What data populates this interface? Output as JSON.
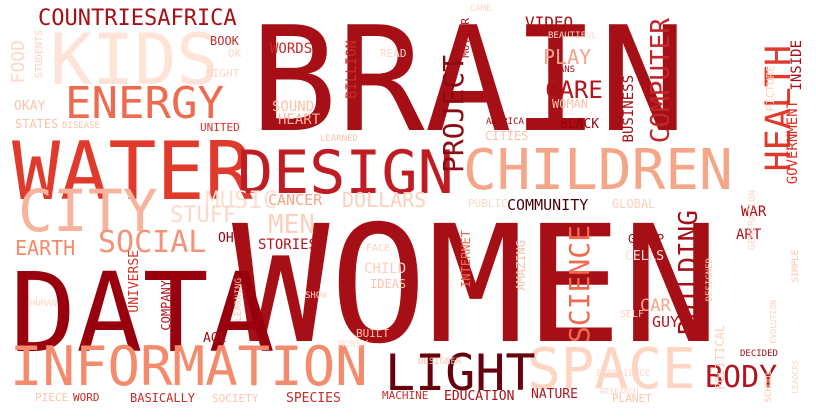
{
  "words": [
    {
      "text": "BRAIN",
      "color": "#a50f15"
    },
    {
      "text": "WOMEN",
      "color": "#a50f15"
    },
    {
      "text": "DATA",
      "color": "#99000d"
    },
    {
      "text": "WATER",
      "color": "#e03a2d"
    },
    {
      "text": "DESIGN",
      "color": "#bf1c24"
    },
    {
      "text": "CHILDREN",
      "color": "#f6a688"
    },
    {
      "text": "INFORMATION",
      "color": "#f48b6d"
    },
    {
      "text": "SPACE",
      "color": "#fdd5c2"
    },
    {
      "text": "KIDS",
      "color": "#fee3d6"
    },
    {
      "text": "CITY",
      "color": "#f7b39b"
    },
    {
      "text": "ENERGY",
      "color": "#ef6b50"
    },
    {
      "text": "LIGHT",
      "color": "#67000d"
    },
    {
      "text": "HEALTH",
      "color": "#e03a2d"
    },
    {
      "text": "COUNTRIESAFRICA",
      "color": "#a50f15"
    },
    {
      "text": "SOCIAL",
      "color": "#f3937a"
    },
    {
      "text": "BODY",
      "color": "#b2151e"
    },
    {
      "text": "PROJECT",
      "color": "#8c0a12"
    },
    {
      "text": "COMPUTER",
      "color": "#c2252a"
    },
    {
      "text": "SCIENCE",
      "color": "#f06a4f"
    },
    {
      "text": "BUILDING",
      "color": "#a50f15"
    },
    {
      "text": "CARE",
      "color": "#b2151e"
    },
    {
      "text": "PLAY",
      "color": "#f4a287"
    },
    {
      "text": "MEN",
      "color": "#fcd0bc"
    },
    {
      "text": "MUSIC",
      "color": "#fbe0d4"
    },
    {
      "text": "STUFF",
      "color": "#fbd8c9"
    },
    {
      "text": "EARTH",
      "color": "#f58a6b"
    },
    {
      "text": "CANCER",
      "color": "#f6a688"
    },
    {
      "text": "DOLLARS",
      "color": "#fcd0bc"
    },
    {
      "text": "COMMUNITY",
      "color": "#4d0009"
    },
    {
      "text": "STORIES",
      "color": "#b2151e"
    },
    {
      "text": "FOOD",
      "color": "#fbd8c9"
    },
    {
      "text": "VIDEO",
      "color": "#a50f15"
    },
    {
      "text": "WORDS",
      "color": "#c72b2a"
    },
    {
      "text": "BILLION",
      "color": "#c72b2a"
    },
    {
      "text": "SOUND",
      "color": "#fcc3ab"
    },
    {
      "text": "HEART",
      "color": "#fcb59a"
    },
    {
      "text": "BLACK",
      "color": "#99000d"
    },
    {
      "text": "WOMAN",
      "color": "#fcc3ab"
    },
    {
      "text": "BUSINESS",
      "color": "#a50f15"
    },
    {
      "text": "GOVERNMENT",
      "color": "#d83128"
    },
    {
      "text": "INSIDE",
      "color": "#a50f15"
    },
    {
      "text": "WAR",
      "color": "#a50f15"
    },
    {
      "text": "ART",
      "color": "#b2151e"
    },
    {
      "text": "GROUP",
      "color": "#a50f15"
    },
    {
      "text": "CELLS",
      "color": "#fbe0d4"
    },
    {
      "text": "CAR",
      "color": "#f6a688"
    },
    {
      "text": "GUY",
      "color": "#b2151e"
    },
    {
      "text": "UNIVERSE",
      "color": "#d83128"
    },
    {
      "text": "COMPANY",
      "color": "#b2151e"
    },
    {
      "text": "AGE",
      "color": "#a50f15"
    },
    {
      "text": "INTERNET",
      "color": "#ef6b50"
    },
    {
      "text": "IDEAS",
      "color": "#fcc3ab"
    },
    {
      "text": "CHILD",
      "color": "#fcd0bc"
    },
    {
      "text": "AMAZING",
      "color": "#fcc3ab"
    },
    {
      "text": "OH",
      "color": "#99000d"
    },
    {
      "text": "OKAY",
      "color": "#fcc3ab"
    },
    {
      "text": "STATES",
      "color": "#fcc3ab"
    },
    {
      "text": "BOOK",
      "color": "#c72b2a"
    },
    {
      "text": "NIGHT",
      "color": "#fbd8c9"
    },
    {
      "text": "UNITED",
      "color": "#d83128"
    },
    {
      "text": "STUDENTS",
      "color": "#fcd0bc"
    },
    {
      "text": "READ",
      "color": "#fbd8c9"
    },
    {
      "text": "MOTHER",
      "color": "#b2151e"
    },
    {
      "text": "AMERICA",
      "color": "#a50f15"
    },
    {
      "text": "CITIES",
      "color": "#fcc3ab"
    },
    {
      "text": "NATURE",
      "color": "#b2151e"
    },
    {
      "text": "EDUCATION",
      "color": "#a50f15"
    },
    {
      "text": "MACHINE",
      "color": "#c72b2a"
    },
    {
      "text": "PLANET",
      "color": "#fcc3ab"
    },
    {
      "text": "SPECIES",
      "color": "#c72b2a"
    },
    {
      "text": "SOCIETY",
      "color": "#fcc3ab"
    },
    {
      "text": "BASICALLY",
      "color": "#c72b2a"
    },
    {
      "text": "WORD",
      "color": "#c72b2a"
    },
    {
      "text": "PIECE",
      "color": "#fcc3ab"
    },
    {
      "text": "PUBLIC",
      "color": "#fbd8c9"
    },
    {
      "text": "GLOBAL",
      "color": "#fcd0bc"
    },
    {
      "text": "PICTURE",
      "color": "#fcd0bc"
    },
    {
      "text": "POLITICAL",
      "color": "#fcd0bc"
    },
    {
      "text": "LEARNING",
      "color": "#fcc3ab"
    },
    {
      "text": "BUILT",
      "color": "#fcc3ab"
    },
    {
      "text": "DECIDED",
      "color": "#a50f15"
    },
    {
      "text": "GENERATION",
      "color": "#fbd8c9"
    },
    {
      "text": "CAME",
      "color": "#fbd8c9"
    },
    {
      "text": "BEAUTIFUL",
      "color": "#fbd8c9"
    },
    {
      "text": "MEANS",
      "color": "#a50f15"
    },
    {
      "text": "SHOW",
      "color": "#fbd8c9"
    },
    {
      "text": "DISEASE",
      "color": "#fcc3ab"
    },
    {
      "text": "LEARNED",
      "color": "#fcc3ab"
    },
    {
      "text": "SELF",
      "color": "#fcd0bc"
    },
    {
      "text": "FACE",
      "color": "#fcd0bc"
    },
    {
      "text": "MONEY",
      "color": "#fbe0d4"
    },
    {
      "text": "OK",
      "color": "#fbd8c9"
    },
    {
      "text": "DESIGNER",
      "color": "#fcc3ab"
    },
    {
      "text": "DESIGNED",
      "color": "#fcd0bc"
    },
    {
      "text": "SIMPLE",
      "color": "#fcc3ab"
    },
    {
      "text": "EXPERIENCE",
      "color": "#fbd8c9"
    },
    {
      "text": "SCHOOL",
      "color": "#fcc3ab"
    },
    {
      "text": "HUMAN",
      "color": "#fbd8c9"
    },
    {
      "text": "LEADERS",
      "color": "#fbd8c9"
    },
    {
      "text": "RESEARCH",
      "color": "#fbd8c9"
    },
    {
      "text": "EVOLUTION",
      "color": "#fcd0bc"
    }
  ]
}
